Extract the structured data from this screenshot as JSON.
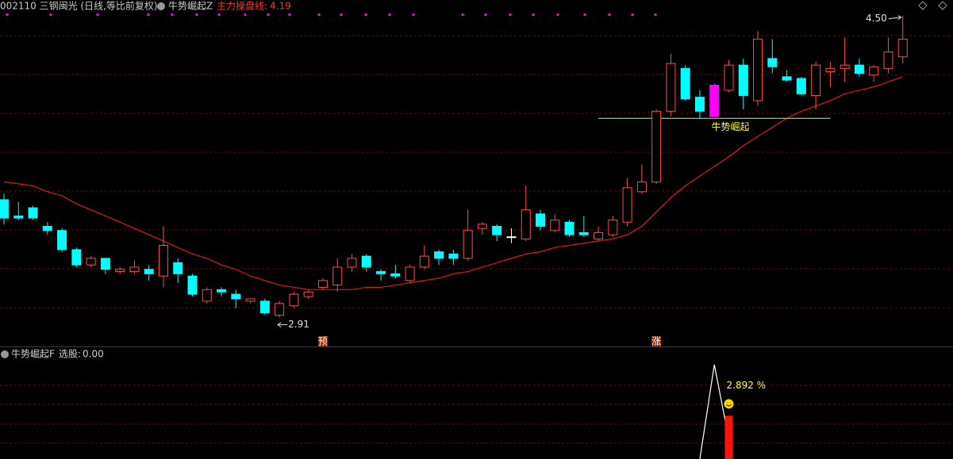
{
  "header": {
    "symbol": "002110 三钢闽光 (日线,等比前复权)",
    "indicator": "牛势崛起Z",
    "line_label": "主力操盘线:",
    "line_value": 4.19
  },
  "chart_data": {
    "type": "candlestick",
    "log": true,
    "ylim": [
      2.83,
      4.54
    ],
    "colors": {
      "up": "#ff4a4a",
      "down": "#00ffff",
      "flat": "#ffffff",
      "highlight": "#ff00ff",
      "ma": "#e01818",
      "support": "#a0ff80"
    },
    "open": [
      3.45,
      3.37,
      3.41,
      3.32,
      3.3,
      3.21,
      3.14,
      3.17,
      3.11,
      3.11,
      3.12,
      3.09,
      3.15,
      3.09,
      2.98,
      3.03,
      3.01,
      2.98,
      2.98,
      2.92,
      2.96,
      3.0,
      3.04,
      3.05,
      3.13,
      3.18,
      3.11,
      3.1,
      3.07,
      3.13,
      3.2,
      3.19,
      3.17,
      3.31,
      3.32,
      3.27,
      3.26,
      3.38,
      3.3,
      3.34,
      3.29,
      3.26,
      3.28,
      3.34,
      3.49,
      3.54,
      3.92,
      4.17,
      4.0,
      3.89,
      4.04,
      4.19,
      3.98,
      4.23,
      4.12,
      4.11,
      4.01,
      4.15,
      4.17,
      4.19,
      4.13,
      4.17,
      4.24
    ],
    "high": [
      3.48,
      3.44,
      3.42,
      3.34,
      3.31,
      3.22,
      3.18,
      3.17,
      3.13,
      3.16,
      3.14,
      3.32,
      3.17,
      3.1,
      3.04,
      3.04,
      3.03,
      2.99,
      2.99,
      2.98,
      3.02,
      3.03,
      3.08,
      3.17,
      3.19,
      3.19,
      3.12,
      3.14,
      3.14,
      3.23,
      3.21,
      3.21,
      3.4,
      3.34,
      3.33,
      3.31,
      3.52,
      3.4,
      3.38,
      3.35,
      3.37,
      3.32,
      3.37,
      3.56,
      3.63,
      3.93,
      4.26,
      4.19,
      4.04,
      4.08,
      4.22,
      4.23,
      4.4,
      4.35,
      4.16,
      4.12,
      4.21,
      4.21,
      4.36,
      4.23,
      4.19,
      4.36,
      4.5
    ],
    "low": [
      3.33,
      3.35,
      3.35,
      3.28,
      3.2,
      3.13,
      3.13,
      3.1,
      3.1,
      3.1,
      3.07,
      3.04,
      3.06,
      3.0,
      2.97,
      3.0,
      2.95,
      2.97,
      2.92,
      2.91,
      2.95,
      2.99,
      3.03,
      3.02,
      3.11,
      3.11,
      3.07,
      3.08,
      3.06,
      3.12,
      3.14,
      3.14,
      3.16,
      3.28,
      3.25,
      3.24,
      3.25,
      3.3,
      3.29,
      3.27,
      3.27,
      3.25,
      3.27,
      3.32,
      3.48,
      3.53,
      3.89,
      3.98,
      3.88,
      3.88,
      4.03,
      3.93,
      3.95,
      4.14,
      4.09,
      4.01,
      3.93,
      4.06,
      4.09,
      4.12,
      4.09,
      4.14,
      4.2
    ],
    "close": [
      3.36,
      3.36,
      3.36,
      3.3,
      3.21,
      3.14,
      3.17,
      3.12,
      3.12,
      3.13,
      3.1,
      3.23,
      3.1,
      3.01,
      3.03,
      3.02,
      2.99,
      2.99,
      2.93,
      2.97,
      3.01,
      3.02,
      3.07,
      3.13,
      3.17,
      3.13,
      3.1,
      3.09,
      3.13,
      3.18,
      3.17,
      3.17,
      3.3,
      3.33,
      3.28,
      3.27,
      3.4,
      3.32,
      3.35,
      3.28,
      3.28,
      3.29,
      3.35,
      3.51,
      3.54,
      3.92,
      4.2,
      3.99,
      3.92,
      4.07,
      4.19,
      4.01,
      4.35,
      4.18,
      4.1,
      4.02,
      4.19,
      4.17,
      4.19,
      4.14,
      4.18,
      4.27,
      4.35
    ],
    "ma": [
      3.54,
      3.53,
      3.52,
      3.49,
      3.47,
      3.43,
      3.4,
      3.37,
      3.34,
      3.31,
      3.28,
      3.25,
      3.22,
      3.19,
      3.17,
      3.14,
      3.12,
      3.09,
      3.07,
      3.05,
      3.04,
      3.03,
      3.03,
      3.03,
      3.03,
      3.04,
      3.04,
      3.05,
      3.06,
      3.07,
      3.08,
      3.1,
      3.11,
      3.13,
      3.15,
      3.17,
      3.19,
      3.2,
      3.22,
      3.23,
      3.24,
      3.25,
      3.26,
      3.28,
      3.32,
      3.39,
      3.46,
      3.52,
      3.57,
      3.62,
      3.67,
      3.73,
      3.78,
      3.83,
      3.88,
      3.92,
      3.95,
      3.98,
      4.02,
      4.04,
      4.06,
      4.09,
      4.12
    ],
    "highlight": 49,
    "high_label": "4.50",
    "low_label": "2.91",
    "support_line": {
      "value": 3.88,
      "label": "牛势崛起",
      "start": 41,
      "end": 57
    },
    "signal_labels": [
      null,
      null,
      null,
      null,
      null,
      null,
      null,
      null,
      null,
      null,
      null,
      null,
      null,
      null,
      null,
      null,
      null,
      null,
      null,
      null,
      null,
      null,
      "预",
      null,
      null,
      null,
      null,
      null,
      null,
      null,
      null,
      null,
      null,
      null,
      null,
      null,
      null,
      null,
      null,
      null,
      null,
      null,
      null,
      null,
      null,
      "涨",
      null,
      null,
      null,
      null,
      null,
      null,
      null,
      null,
      null,
      null,
      null,
      null,
      null,
      null,
      null,
      null,
      null
    ]
  },
  "lower": {
    "title": "牛势崛起F",
    "pick_label": "选股:",
    "pick_value": "0.00",
    "ylim": [
      0,
      100
    ],
    "line_color": "#ffffff",
    "bar_color": "#ff1010",
    "line": [
      null,
      null,
      null,
      null,
      null,
      null,
      null,
      null,
      null,
      null,
      null,
      null,
      null,
      null,
      null,
      null,
      null,
      null,
      null,
      null,
      null,
      null,
      null,
      null,
      null,
      null,
      null,
      null,
      null,
      null,
      null,
      null,
      null,
      null,
      null,
      null,
      null,
      null,
      null,
      null,
      null,
      null,
      null,
      null,
      null,
      null,
      null,
      null,
      0,
      96,
      20,
      null,
      null,
      null,
      null,
      null,
      null,
      null,
      null,
      null,
      null,
      null,
      null
    ],
    "bars": [
      null,
      null,
      null,
      null,
      null,
      null,
      null,
      null,
      null,
      null,
      null,
      null,
      null,
      null,
      null,
      null,
      null,
      null,
      null,
      null,
      null,
      null,
      null,
      null,
      null,
      null,
      null,
      null,
      null,
      null,
      null,
      null,
      null,
      null,
      null,
      null,
      null,
      null,
      null,
      null,
      null,
      null,
      null,
      null,
      null,
      null,
      null,
      null,
      null,
      null,
      44,
      null,
      null,
      null,
      null,
      null,
      null,
      null,
      null,
      null,
      null,
      null,
      null
    ],
    "bar_label": "2.892 %"
  }
}
